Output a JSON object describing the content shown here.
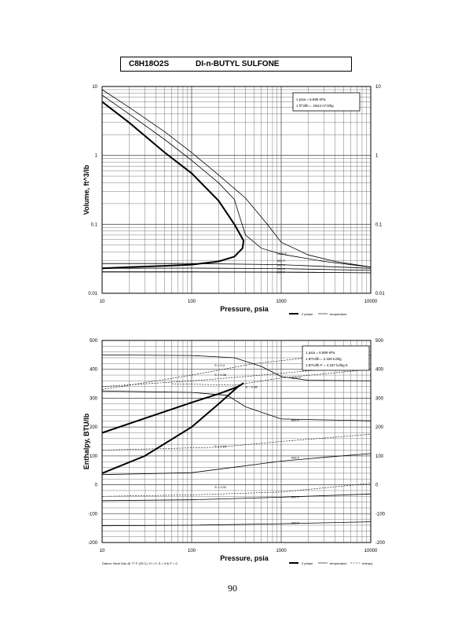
{
  "header": {
    "formula": "C8H18O2S",
    "name": "DI-n-BUTYL SULFONE"
  },
  "page_number": "90",
  "legend": {
    "two_phase": "2 phase",
    "temperature": "temperature",
    "entropy": "entropy"
  },
  "datum_note": "Datum: Ideal Gas @ 77 F (25 C), H = 0, S = 0 lb F = 0",
  "chart_data": [
    {
      "id": "volume",
      "type": "line",
      "xlabel": "Pressure,  psia",
      "ylabel": "Volume, ft^3/lb",
      "xscale": "log",
      "yscale": "log",
      "xlim": [
        10,
        10000
      ],
      "ylim": [
        0.01,
        10
      ],
      "grid": true,
      "x_ticks": [
        "10",
        "100",
        "1000",
        "10000"
      ],
      "y_ticks": [
        "10",
        "1",
        "0.1",
        "0.01"
      ],
      "y_ticks_right": [
        "10",
        "1",
        "0.1",
        "0.01"
      ],
      "conversion_box": [
        "1 psia  =  6.895 kPa",
        "1 ft^3/lb  =  .0624 m^3/kg"
      ],
      "two_phase_dome": [
        [
          10,
          6.0
        ],
        [
          20,
          3.0
        ],
        [
          50,
          1.1
        ],
        [
          100,
          0.55
        ],
        [
          200,
          0.22
        ],
        [
          300,
          0.1
        ],
        [
          380,
          0.058
        ],
        [
          370,
          0.045
        ],
        [
          300,
          0.034
        ],
        [
          200,
          0.029
        ],
        [
          100,
          0.026
        ],
        [
          50,
          0.025
        ],
        [
          20,
          0.024
        ],
        [
          10,
          0.023
        ]
      ],
      "series": [
        {
          "name": "1000 F",
          "label_at": [
            900,
            0.038
          ],
          "points": [
            [
              10,
              9.0
            ],
            [
              20,
              5.0
            ],
            [
              50,
              2.2
            ],
            [
              100,
              1.1
            ],
            [
              200,
              0.52
            ],
            [
              400,
              0.24
            ],
            [
              700,
              0.1
            ],
            [
              1000,
              0.055
            ],
            [
              2000,
              0.036
            ],
            [
              4000,
              0.029
            ],
            [
              10000,
              0.024
            ]
          ]
        },
        {
          "name": "800 F",
          "label_at": [
            900,
            0.03
          ],
          "points": [
            [
              10,
              7.5
            ],
            [
              20,
              4.0
            ],
            [
              50,
              1.7
            ],
            [
              100,
              0.85
            ],
            [
              200,
              0.4
            ],
            [
              300,
              0.23
            ],
            [
              350,
              0.12
            ],
            [
              400,
              0.07
            ],
            [
              600,
              0.045
            ],
            [
              1000,
              0.037
            ],
            [
              3000,
              0.029
            ],
            [
              10000,
              0.024
            ]
          ]
        },
        {
          "name": "600 F",
          "label_at": [
            900,
            0.026
          ],
          "points": [
            [
              10,
              0.027
            ],
            [
              100,
              0.027
            ],
            [
              1000,
              0.026
            ],
            [
              10000,
              0.023
            ]
          ]
        },
        {
          "name": "400 F",
          "label_at": [
            900,
            0.023
          ],
          "points": [
            [
              10,
              0.023
            ],
            [
              100,
              0.0232
            ],
            [
              1000,
              0.0228
            ],
            [
              10000,
              0.0215
            ]
          ]
        },
        {
          "name": "200 F",
          "label_at": [
            900,
            0.0205
          ],
          "points": [
            [
              10,
              0.0205
            ],
            [
              100,
              0.0205
            ],
            [
              1000,
              0.0203
            ],
            [
              10000,
              0.0198
            ]
          ]
        }
      ]
    },
    {
      "id": "enthalpy",
      "type": "line",
      "xlabel": "Pressure,  psia",
      "ylabel": "Enthalpy, BTU/lb",
      "xscale": "log",
      "yscale": "linear",
      "xlim": [
        10,
        10000
      ],
      "ylim": [
        -200,
        500
      ],
      "grid": true,
      "x_ticks": [
        "10",
        "100",
        "1000",
        "10000"
      ],
      "y_ticks": [
        "500",
        "400",
        "300",
        "200",
        "100",
        "0",
        "-100",
        "-200"
      ],
      "y_ticks_right": [
        "500",
        "400",
        "300",
        "200",
        "100",
        "0",
        "-100",
        "-200"
      ],
      "conversion_box": [
        "1 psia  =  6.895 kPa",
        "1 BTU/lb  =  2.326 kJ/kg",
        "1 BTU/lb F  =  4.187 kJ/kg K"
      ],
      "two_phase_dome": [
        [
          10,
          40
        ],
        [
          30,
          100
        ],
        [
          100,
          200
        ],
        [
          200,
          280
        ],
        [
          330,
          340
        ],
        [
          380,
          352
        ],
        [
          350,
          345
        ],
        [
          300,
          335
        ],
        [
          200,
          315
        ],
        [
          100,
          285
        ],
        [
          30,
          230
        ],
        [
          10,
          180
        ]
      ],
      "series": [
        {
          "name": "1000 F",
          "label_at": [
            1300,
            372
          ],
          "points": [
            [
              10,
              450
            ],
            [
              100,
              448
            ],
            [
              300,
              440
            ],
            [
              600,
              410
            ],
            [
              1000,
              375
            ],
            [
              2000,
              362
            ],
            [
              10000,
              360
            ]
          ]
        },
        {
          "name": "800 F",
          "label_at": [
            1300,
            225
          ],
          "points": [
            [
              10,
              325
            ],
            [
              100,
              320
            ],
            [
              250,
              310
            ],
            [
              400,
              270
            ],
            [
              1000,
              228
            ],
            [
              10000,
              222
            ]
          ]
        },
        {
          "name": "600 F",
          "label_at": [
            1300,
            95
          ],
          "points": [
            [
              10,
              35
            ],
            [
              100,
              42
            ],
            [
              1000,
              82
            ],
            [
              3000,
              95
            ],
            [
              10000,
              108
            ]
          ]
        },
        {
          "name": "400 F",
          "label_at": [
            1300,
            -40
          ],
          "points": [
            [
              10,
              -55
            ],
            [
              100,
              -52
            ],
            [
              1000,
              -43
            ],
            [
              10000,
              -32
            ]
          ]
        },
        {
          "name": "200 F",
          "label_at": [
            1300,
            -130
          ],
          "points": [
            [
              10,
              -142
            ],
            [
              100,
              -140
            ],
            [
              1000,
              -135
            ],
            [
              10000,
              -128
            ]
          ]
        }
      ],
      "entropy_series": [
        {
          "name": "S = 0.4",
          "label_at": [
            180,
            410
          ],
          "points": [
            [
              10,
              330
            ],
            [
              100,
              380
            ],
            [
              500,
              420
            ],
            [
              2000,
              440
            ],
            [
              10000,
              450
            ]
          ]
        },
        {
          "name": "S = 0.36",
          "label_at": [
            180,
            378
          ],
          "points": [
            [
              10,
              340
            ],
            [
              100,
              360
            ],
            [
              400,
              375
            ],
            [
              2000,
              395
            ],
            [
              10000,
              405
            ]
          ]
        },
        {
          "name": "S = 0.38",
          "label_at": [
            400,
            335
          ],
          "points": [
            [
              60,
              350
            ],
            [
              300,
              345
            ],
            [
              1000,
              370
            ],
            [
              10000,
              400
            ]
          ]
        },
        {
          "name": "S = 0.16",
          "label_at": [
            180,
            130
          ],
          "points": [
            [
              10,
              120
            ],
            [
              200,
              130
            ],
            [
              1000,
              150
            ],
            [
              10000,
              175
            ]
          ]
        },
        {
          "name": "S = 0.02",
          "label_at": [
            180,
            -12
          ],
          "points": [
            [
              10,
              -40
            ],
            [
              100,
              -35
            ],
            [
              1000,
              -25
            ],
            [
              10000,
              5
            ]
          ]
        }
      ]
    }
  ]
}
